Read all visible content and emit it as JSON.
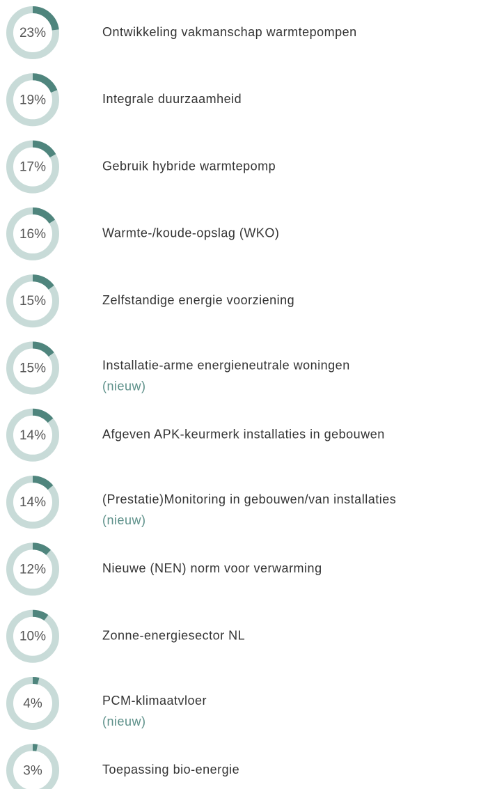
{
  "chart_data": {
    "type": "gauge-list",
    "categories": [
      "Ontwikkeling vakmanschap warmtepompen",
      "Integrale duurzaamheid",
      "Gebruik hybride warmtepomp",
      "Warmte-/koude-opslag (WKO)",
      "Zelfstandige energie voorziening",
      "Installatie-arme energieneutrale woningen",
      "Afgeven APK-keurmerk installaties in gebouwen",
      "(Prestatie)Monitoring in gebouwen/van installaties",
      "Nieuwe (NEN) norm voor verwarming",
      "Zonne-energiesector NL",
      "PCM-klimaatvloer",
      "Toepassing bio-energie"
    ],
    "values": [
      23,
      19,
      17,
      16,
      15,
      15,
      14,
      14,
      12,
      10,
      4,
      3
    ],
    "value_labels": [
      "23%",
      "19%",
      "17%",
      "16%",
      "15%",
      "15%",
      "14%",
      "14%",
      "12%",
      "10%",
      "4%",
      "3%"
    ],
    "notes": [
      null,
      null,
      null,
      null,
      null,
      "(nieuw)",
      null,
      "(nieuw)",
      null,
      null,
      "(nieuw)",
      null
    ],
    "color": "#4f857d",
    "track_color": "#c8dbd8",
    "note_color": "#5b8f88"
  }
}
